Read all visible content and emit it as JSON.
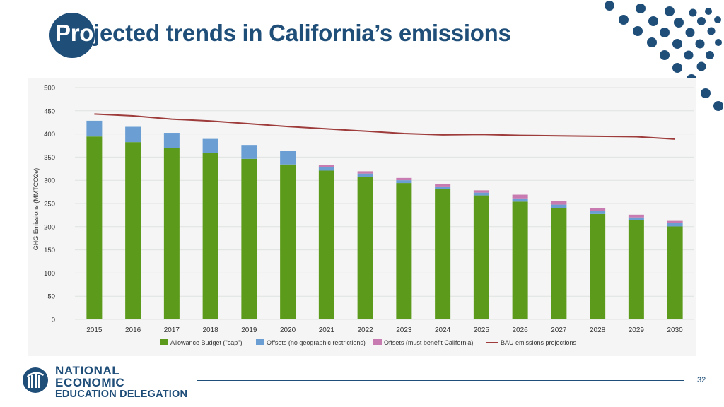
{
  "slide": {
    "title_highlight": "Pro",
    "title_rest": "jected trends in California’s emissions",
    "page_number": "32"
  },
  "logo": {
    "line1": "NATIONAL ECONOMIC",
    "line2": "EDUCATION DELEGATION"
  },
  "colors": {
    "brand": "#1f4e79",
    "allowance": "#5c9a1b",
    "offsets_general": "#6b9fd4",
    "offsets_california": "#c77bb0",
    "bau_line": "#9e3b3b"
  },
  "chart_data": {
    "type": "bar",
    "stacked": true,
    "title": "",
    "xlabel": "",
    "ylabel": "GHG Emissions (MMTCO2e)",
    "ylim": [
      0,
      500
    ],
    "yticks": [
      0,
      50,
      100,
      150,
      200,
      250,
      300,
      350,
      400,
      450,
      500
    ],
    "grid": true,
    "legend_position": "bottom",
    "categories": [
      "2015",
      "2016",
      "2017",
      "2018",
      "2019",
      "2020",
      "2021",
      "2022",
      "2023",
      "2024",
      "2025",
      "2026",
      "2027",
      "2028",
      "2029",
      "2030"
    ],
    "series": [
      {
        "name": "Allowance Budget (\"cap\")",
        "kind": "bar",
        "color": "#5c9a1b",
        "values": [
          394.5,
          382.4,
          370.4,
          358.3,
          346.3,
          334.2,
          320.9,
          307.5,
          294.1,
          280.7,
          267.4,
          254.0,
          240.6,
          227.3,
          213.9,
          200.5
        ]
      },
      {
        "name": "Offsets (no geographic restrictions)",
        "kind": "bar",
        "color": "#6b9fd4",
        "values": [
          34,
          33,
          32,
          31,
          30,
          29,
          7,
          7,
          6,
          6,
          6,
          7,
          7,
          6,
          6,
          7
        ]
      },
      {
        "name": "Offsets (must benefit California)",
        "kind": "bar",
        "color": "#c77bb0",
        "values": [
          0,
          0,
          0,
          0,
          0,
          0,
          5,
          5,
          5,
          5,
          5,
          8,
          7,
          7,
          6,
          5
        ]
      },
      {
        "name": "BAU emissions projections",
        "kind": "line",
        "color": "#9e3b3b",
        "values": [
          443,
          439,
          432,
          428,
          422,
          416,
          411,
          406,
          401,
          398,
          399,
          397,
          396,
          395,
          394,
          389
        ]
      }
    ]
  }
}
